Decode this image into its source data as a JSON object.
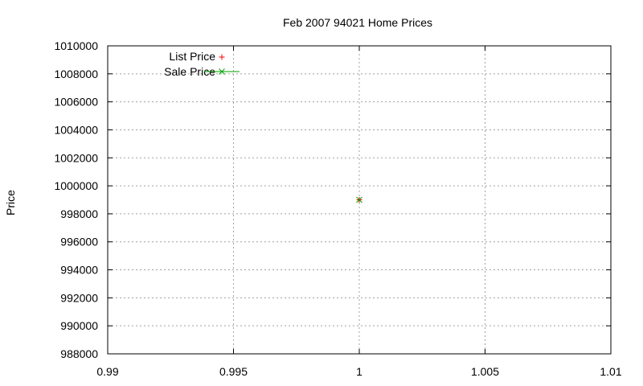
{
  "chart_data": {
    "type": "scatter",
    "title": "Feb 2007 94021 Home Prices",
    "xlabel": "",
    "ylabel": "Price",
    "xlim": [
      0.99,
      1.01
    ],
    "ylim": [
      988000,
      1010000
    ],
    "x_ticks": [
      "0.99",
      "0.995",
      "1",
      "1.005",
      "1.01"
    ],
    "x_tick_values": [
      0.99,
      0.995,
      1,
      1.005,
      1.01
    ],
    "y_ticks": [
      "988000",
      "990000",
      "992000",
      "994000",
      "996000",
      "998000",
      "1000000",
      "1002000",
      "1004000",
      "1006000",
      "1008000",
      "1010000"
    ],
    "y_tick_values": [
      988000,
      990000,
      992000,
      994000,
      996000,
      998000,
      1000000,
      1002000,
      1004000,
      1006000,
      1008000,
      1010000
    ],
    "grid": true,
    "legend_position": "top-left",
    "series": [
      {
        "name": "List Price",
        "marker": "+",
        "color": "#ff0000",
        "points": [
          {
            "x": 1,
            "y": 999000
          }
        ]
      },
      {
        "name": "Sale Price",
        "marker": "x",
        "color": "#00a000",
        "points": [
          {
            "x": 1,
            "y": 999000
          }
        ]
      }
    ]
  }
}
